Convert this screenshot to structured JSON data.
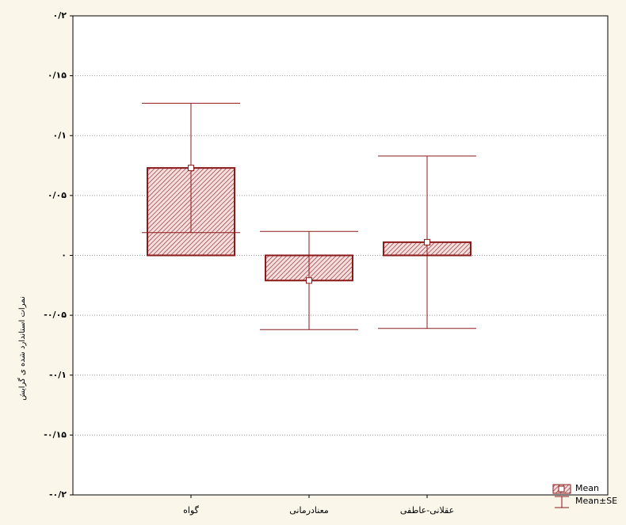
{
  "chart_data": {
    "type": "meanse",
    "y_label": "نمرات استاندارد شده ی گرایش",
    "categories": [
      "گواه",
      "معنادرمانی",
      "عقلانی-عاطفی"
    ],
    "means": [
      0.073,
      -0.021,
      0.011
    ],
    "ses": [
      0.054,
      0.041,
      0.072
    ],
    "color": "#8b1a1a",
    "legend": [
      "Mean",
      "Mean±SE"
    ],
    "ylim": [
      -0.2,
      0.2
    ],
    "yticks": [
      {
        "value": 0.2,
        "label": "۰/۲"
      },
      {
        "value": 0.15,
        "label": "۰/۱۵"
      },
      {
        "value": 0.1,
        "label": "۰/۱"
      },
      {
        "value": 0.05,
        "label": "۰/۰۵"
      },
      {
        "value": 0,
        "label": "۰"
      },
      {
        "value": -0.05,
        "label": "-۰/۰۵"
      },
      {
        "value": -0.1,
        "label": "-۰/۱"
      },
      {
        "value": -0.15,
        "label": "-۰/۱۵"
      },
      {
        "value": -0.2,
        "label": "-۰/۲"
      }
    ],
    "grid": true
  }
}
